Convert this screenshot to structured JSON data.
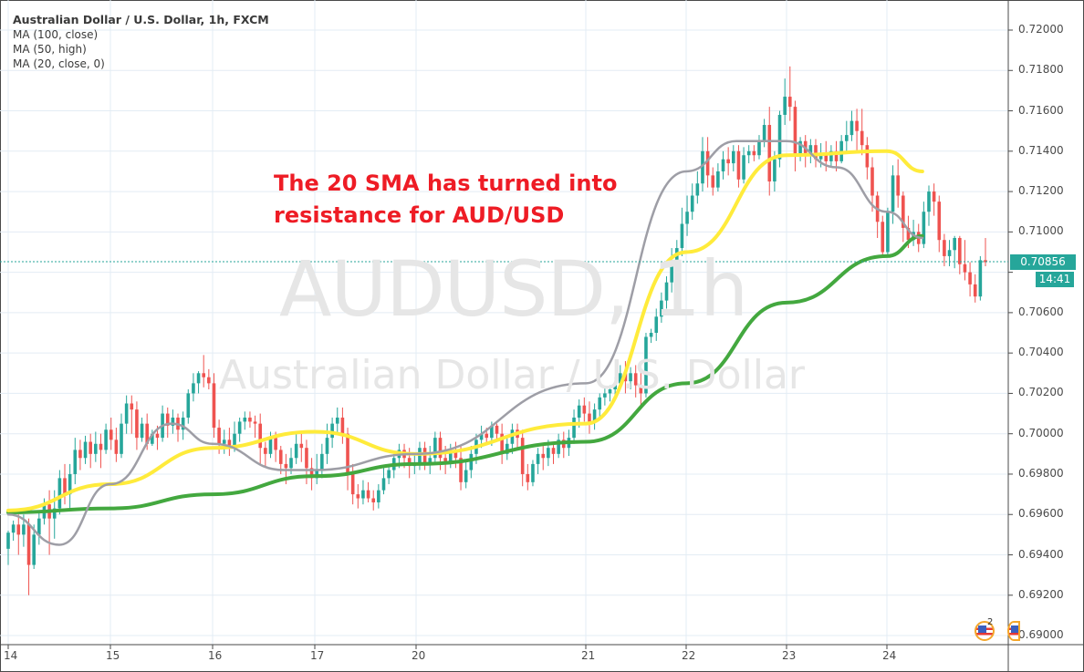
{
  "chart_meta": {
    "symbol_title": "Australian Dollar / U.S. Dollar, 1h, FXCM",
    "indicators": [
      "MA (100, close)",
      "MA (50, high)",
      "MA (20, close, 0)"
    ],
    "watermark_symbol": "AUDUSD, 1h",
    "watermark_name": "Australian Dollar / U.S. Dollar",
    "annotation_line1": "The 20 SMA has turned into",
    "annotation_line2": "resistance for AUD/USD",
    "last_price": "0.70856",
    "countdown": "14:41",
    "event_count": "2",
    "colors": {
      "up": "#26a69a",
      "down": "#ef5350",
      "ma100": "#43a83f",
      "ma50": "#ffeb3b",
      "ma20": "#9e9ea6",
      "annotation": "#ee1c25",
      "grid": "#e3ecf4",
      "price_line": "#26a69a"
    }
  },
  "chart_data": {
    "type": "candlestick",
    "title": "Australian Dollar / U.S. Dollar, 1h, FXCM",
    "xlabel": "",
    "ylabel": "",
    "x_ticks": [
      "14",
      "15",
      "16",
      "17",
      "20",
      "21",
      "22",
      "23",
      "24"
    ],
    "y_ticks": [
      "0.72000",
      "0.71800",
      "0.71600",
      "0.71400",
      "0.71200",
      "0.71000",
      "0.70800",
      "0.70600",
      "0.70400",
      "0.70200",
      "0.70000",
      "0.69800",
      "0.69600",
      "0.69400",
      "0.69200",
      "0.69000"
    ],
    "ylim": [
      0.6895,
      0.7215
    ],
    "grid": true,
    "legend_position": "top-left",
    "last_price": 0.70856,
    "series": [
      {
        "name": "MA (100, close)",
        "color": "#43a83f",
        "x": [
          "14",
          "15",
          "16",
          "17",
          "20",
          "21",
          "22",
          "23",
          "24",
          "24.35"
        ],
        "values": [
          0.6961,
          0.6963,
          0.697,
          0.6979,
          0.6985,
          0.6996,
          0.7025,
          0.7065,
          0.7088,
          0.7098
        ]
      },
      {
        "name": "MA (50, high)",
        "color": "#ffeb3b",
        "x": [
          "14",
          "15",
          "16",
          "17",
          "20",
          "21",
          "22",
          "23",
          "24",
          "24.35"
        ],
        "values": [
          0.6962,
          0.6975,
          0.6993,
          0.7001,
          0.699,
          0.7005,
          0.709,
          0.7138,
          0.714,
          0.713
        ]
      },
      {
        "name": "MA (20, close, 0)",
        "color": "#9e9ea6",
        "x": [
          "14",
          "14.5",
          "15",
          "15.6",
          "16",
          "16.7",
          "17",
          "20",
          "21",
          "22",
          "22.5",
          "23",
          "23.5",
          "24",
          "24.35"
        ],
        "values": [
          0.696,
          0.6945,
          0.6975,
          0.7005,
          0.6995,
          0.6982,
          0.6982,
          0.699,
          0.7025,
          0.713,
          0.7145,
          0.7145,
          0.7132,
          0.711,
          0.7097
        ]
      }
    ],
    "candles": [
      [
        0.6943,
        0.6951,
        0.6935,
        0.6952
      ],
      [
        0.6951,
        0.6955,
        0.6947,
        0.6957
      ],
      [
        0.6955,
        0.695,
        0.694,
        0.696
      ],
      [
        0.695,
        0.6955,
        0.6944,
        0.696
      ],
      [
        0.6955,
        0.6935,
        0.692,
        0.6958
      ],
      [
        0.6935,
        0.695,
        0.6933,
        0.6955
      ],
      [
        0.695,
        0.6958,
        0.6945,
        0.6962
      ],
      [
        0.6958,
        0.6965,
        0.6955,
        0.6968
      ],
      [
        0.6965,
        0.6958,
        0.694,
        0.6972
      ],
      [
        0.6958,
        0.6963,
        0.6948,
        0.6972
      ],
      [
        0.6963,
        0.6978,
        0.696,
        0.6982
      ],
      [
        0.6978,
        0.697,
        0.6965,
        0.6985
      ],
      [
        0.697,
        0.698,
        0.6962,
        0.6985
      ],
      [
        0.698,
        0.6992,
        0.6975,
        0.6998
      ],
      [
        0.6992,
        0.6988,
        0.6982,
        0.6997
      ],
      [
        0.6988,
        0.6996,
        0.6985,
        0.6999
      ],
      [
        0.6996,
        0.699,
        0.6983,
        0.7
      ],
      [
        0.699,
        0.6995,
        0.6986,
        0.7001
      ],
      [
        0.6995,
        0.6992,
        0.6983,
        0.7
      ],
      [
        0.6992,
        0.7002,
        0.699,
        0.7005
      ],
      [
        0.7002,
        0.6997,
        0.6992,
        0.7008
      ],
      [
        0.6997,
        0.699,
        0.6986,
        0.7003
      ],
      [
        0.699,
        0.7005,
        0.6988,
        0.701
      ],
      [
        0.7005,
        0.7015,
        0.7,
        0.7019
      ],
      [
        0.7015,
        0.7012,
        0.7,
        0.7019
      ],
      [
        0.7012,
        0.6998,
        0.6992,
        0.7016
      ],
      [
        0.6998,
        0.7005,
        0.6996,
        0.7008
      ],
      [
        0.7005,
        0.6995,
        0.6992,
        0.701
      ],
      [
        0.6995,
        0.7,
        0.6994,
        0.7002
      ],
      [
        0.7,
        0.6998,
        0.6992,
        0.7004
      ],
      [
        0.6998,
        0.701,
        0.6996,
        0.7014
      ],
      [
        0.701,
        0.7004,
        0.6998,
        0.7013
      ],
      [
        0.7004,
        0.7008,
        0.7,
        0.7012
      ],
      [
        0.7008,
        0.7002,
        0.6996,
        0.701
      ],
      [
        0.7002,
        0.7008,
        0.6997,
        0.7011
      ],
      [
        0.7008,
        0.702,
        0.7005,
        0.7022
      ],
      [
        0.702,
        0.7025,
        0.7016,
        0.703
      ],
      [
        0.7025,
        0.703,
        0.702,
        0.7031
      ],
      [
        0.703,
        0.7028,
        0.7023,
        0.7039
      ],
      [
        0.7028,
        0.7025,
        0.7022,
        0.7032
      ],
      [
        0.7025,
        0.7003,
        0.6998,
        0.703
      ],
      [
        0.7003,
        0.6995,
        0.699,
        0.7007
      ],
      [
        0.6995,
        0.6997,
        0.699,
        0.7002
      ],
      [
        0.6997,
        0.6993,
        0.6989,
        0.7003
      ],
      [
        0.6993,
        0.7,
        0.6991,
        0.7006
      ],
      [
        0.7,
        0.7006,
        0.6996,
        0.7008
      ],
      [
        0.7006,
        0.7008,
        0.7002,
        0.7011
      ],
      [
        0.7008,
        0.7006,
        0.7003,
        0.7011
      ],
      [
        0.7006,
        0.7005,
        0.6998,
        0.7009
      ],
      [
        0.7005,
        0.6993,
        0.6985,
        0.701
      ],
      [
        0.6993,
        0.699,
        0.6984,
        0.6996
      ],
      [
        0.699,
        0.6998,
        0.6988,
        0.7001
      ],
      [
        0.6998,
        0.6992,
        0.6986,
        0.7001
      ],
      [
        0.6992,
        0.6985,
        0.698,
        0.6994
      ],
      [
        0.6985,
        0.6983,
        0.6975,
        0.699
      ],
      [
        0.6983,
        0.6988,
        0.698,
        0.6993
      ],
      [
        0.6988,
        0.6995,
        0.6985,
        0.7001
      ],
      [
        0.6995,
        0.6993,
        0.6986,
        0.7001
      ],
      [
        0.6993,
        0.6983,
        0.6975,
        0.6997
      ],
      [
        0.6983,
        0.6978,
        0.6972,
        0.6988
      ],
      [
        0.6978,
        0.6982,
        0.6975,
        0.699
      ],
      [
        0.6982,
        0.699,
        0.6978,
        0.6995
      ],
      [
        0.699,
        0.6998,
        0.6985,
        0.7005
      ],
      [
        0.6998,
        0.7005,
        0.6993,
        0.7008
      ],
      [
        0.7005,
        0.7008,
        0.7,
        0.7013
      ],
      [
        0.7008,
        0.7,
        0.6995,
        0.7013
      ],
      [
        0.7,
        0.698,
        0.6972,
        0.7003
      ],
      [
        0.698,
        0.697,
        0.6965,
        0.6985
      ],
      [
        0.697,
        0.6968,
        0.6963,
        0.6975
      ],
      [
        0.6968,
        0.6972,
        0.6965,
        0.6977
      ],
      [
        0.6972,
        0.6968,
        0.6966,
        0.6976
      ],
      [
        0.6968,
        0.6966,
        0.6962,
        0.6972
      ],
      [
        0.6966,
        0.6972,
        0.6963,
        0.6975
      ],
      [
        0.6972,
        0.6978,
        0.697,
        0.6983
      ],
      [
        0.6978,
        0.6982,
        0.6975,
        0.6985
      ],
      [
        0.6982,
        0.6988,
        0.6978,
        0.699
      ],
      [
        0.6988,
        0.6992,
        0.6983,
        0.6995
      ],
      [
        0.6992,
        0.6988,
        0.6983,
        0.6995
      ],
      [
        0.6988,
        0.6984,
        0.6978,
        0.6993
      ],
      [
        0.6984,
        0.6985,
        0.698,
        0.699
      ],
      [
        0.6985,
        0.6993,
        0.6982,
        0.6996
      ],
      [
        0.6993,
        0.6985,
        0.6982,
        0.6996
      ],
      [
        0.6985,
        0.6988,
        0.698,
        0.6994
      ],
      [
        0.6988,
        0.6998,
        0.6985,
        0.7001
      ],
      [
        0.6998,
        0.6988,
        0.6982,
        0.7001
      ],
      [
        0.6988,
        0.6985,
        0.698,
        0.6994
      ],
      [
        0.6985,
        0.6992,
        0.6983,
        0.6995
      ],
      [
        0.6992,
        0.6988,
        0.6983,
        0.6996
      ],
      [
        0.6988,
        0.6976,
        0.6972,
        0.6994
      ],
      [
        0.6976,
        0.6982,
        0.6973,
        0.6986
      ],
      [
        0.6982,
        0.699,
        0.6978,
        0.6994
      ],
      [
        0.699,
        0.6997,
        0.6985,
        0.7
      ],
      [
        0.6997,
        0.7,
        0.6993,
        0.7004
      ],
      [
        0.7,
        0.6998,
        0.6995,
        0.7003
      ],
      [
        0.6998,
        0.7004,
        0.6994,
        0.7006
      ],
      [
        0.7004,
        0.7,
        0.6996,
        0.7005
      ],
      [
        0.7,
        0.699,
        0.6985,
        0.7005
      ],
      [
        0.699,
        0.6995,
        0.6987,
        0.6998
      ],
      [
        0.6995,
        0.7002,
        0.699,
        0.7005
      ],
      [
        0.7002,
        0.6998,
        0.6993,
        0.7005
      ],
      [
        0.6998,
        0.698,
        0.6974,
        0.7002
      ],
      [
        0.698,
        0.6976,
        0.6972,
        0.6985
      ],
      [
        0.6976,
        0.6985,
        0.6974,
        0.6987
      ],
      [
        0.6985,
        0.699,
        0.698,
        0.6993
      ],
      [
        0.699,
        0.6988,
        0.6982,
        0.6995
      ],
      [
        0.6988,
        0.6993,
        0.6984,
        0.6997
      ],
      [
        0.6993,
        0.699,
        0.6985,
        0.6996
      ],
      [
        0.699,
        0.6997,
        0.6988,
        0.7
      ],
      [
        0.6997,
        0.6993,
        0.6988,
        0.7001
      ],
      [
        0.6993,
        0.6998,
        0.6989,
        0.7002
      ],
      [
        0.6998,
        0.7008,
        0.6995,
        0.7012
      ],
      [
        0.7008,
        0.7014,
        0.7003,
        0.7017
      ],
      [
        0.7014,
        0.701,
        0.7006,
        0.7018
      ],
      [
        0.701,
        0.7006,
        0.7,
        0.7016
      ],
      [
        0.7006,
        0.7012,
        0.7002,
        0.7015
      ],
      [
        0.7012,
        0.7018,
        0.7008,
        0.702
      ],
      [
        0.7018,
        0.702,
        0.7014,
        0.7023
      ],
      [
        0.702,
        0.7022,
        0.7016,
        0.7024
      ],
      [
        0.7022,
        0.7025,
        0.7018,
        0.7028
      ],
      [
        0.7025,
        0.703,
        0.7022,
        0.7034
      ],
      [
        0.703,
        0.7026,
        0.702,
        0.7036
      ],
      [
        0.7026,
        0.703,
        0.7022,
        0.7033
      ],
      [
        0.703,
        0.7024,
        0.7018,
        0.7034
      ],
      [
        0.7024,
        0.702,
        0.7014,
        0.7032
      ],
      [
        0.702,
        0.7048,
        0.7018,
        0.705
      ],
      [
        0.7048,
        0.705,
        0.7045,
        0.7052
      ],
      [
        0.705,
        0.7058,
        0.7046,
        0.7062
      ],
      [
        0.7058,
        0.7066,
        0.7055,
        0.707
      ],
      [
        0.7066,
        0.7075,
        0.7062,
        0.7078
      ],
      [
        0.7075,
        0.7085,
        0.707,
        0.7092
      ],
      [
        0.7085,
        0.7092,
        0.708,
        0.7096
      ],
      [
        0.7092,
        0.7104,
        0.7088,
        0.7112
      ],
      [
        0.7104,
        0.711,
        0.7098,
        0.7118
      ],
      [
        0.711,
        0.7118,
        0.7106,
        0.7124
      ],
      [
        0.7118,
        0.7124,
        0.7114,
        0.713
      ],
      [
        0.7124,
        0.714,
        0.712,
        0.7147
      ],
      [
        0.714,
        0.7128,
        0.7122,
        0.7147
      ],
      [
        0.7128,
        0.7122,
        0.7118,
        0.7132
      ],
      [
        0.7122,
        0.713,
        0.712,
        0.7134
      ],
      [
        0.713,
        0.7136,
        0.7126,
        0.714
      ],
      [
        0.7136,
        0.7134,
        0.7128,
        0.7142
      ],
      [
        0.7134,
        0.714,
        0.713,
        0.7143
      ],
      [
        0.714,
        0.7126,
        0.7122,
        0.7143
      ],
      [
        0.7126,
        0.7138,
        0.7124,
        0.7142
      ],
      [
        0.7138,
        0.714,
        0.7134,
        0.7143
      ],
      [
        0.714,
        0.7138,
        0.7135,
        0.7143
      ],
      [
        0.7138,
        0.7145,
        0.7136,
        0.7148
      ],
      [
        0.7145,
        0.7153,
        0.7142,
        0.7156
      ],
      [
        0.7153,
        0.7125,
        0.7118,
        0.7162
      ],
      [
        0.7125,
        0.7136,
        0.712,
        0.714
      ],
      [
        0.7136,
        0.7158,
        0.7132,
        0.716
      ],
      [
        0.7158,
        0.7167,
        0.7153,
        0.7176
      ],
      [
        0.7167,
        0.7162,
        0.7155,
        0.7182
      ],
      [
        0.7162,
        0.7138,
        0.713,
        0.7165
      ],
      [
        0.7138,
        0.7145,
        0.7135,
        0.7147
      ],
      [
        0.7145,
        0.7138,
        0.7132,
        0.7148
      ],
      [
        0.7138,
        0.7143,
        0.7134,
        0.7146
      ],
      [
        0.7143,
        0.7136,
        0.7132,
        0.7146
      ],
      [
        0.7136,
        0.7138,
        0.7132,
        0.7144
      ],
      [
        0.7138,
        0.7135,
        0.713,
        0.7145
      ],
      [
        0.7135,
        0.714,
        0.7132,
        0.7143
      ],
      [
        0.714,
        0.7135,
        0.713,
        0.7145
      ],
      [
        0.7135,
        0.7145,
        0.7134,
        0.7148
      ],
      [
        0.7145,
        0.7148,
        0.714,
        0.7155
      ],
      [
        0.7148,
        0.7155,
        0.7145,
        0.716
      ],
      [
        0.7155,
        0.715,
        0.714,
        0.7161
      ],
      [
        0.715,
        0.7143,
        0.7138,
        0.7161
      ],
      [
        0.7143,
        0.7132,
        0.7126,
        0.7147
      ],
      [
        0.7132,
        0.7118,
        0.711,
        0.7137
      ],
      [
        0.7118,
        0.7105,
        0.7097,
        0.712
      ],
      [
        0.7105,
        0.709,
        0.7088,
        0.7108
      ],
      [
        0.709,
        0.711,
        0.7088,
        0.7112
      ],
      [
        0.711,
        0.7128,
        0.7104,
        0.7133
      ],
      [
        0.7128,
        0.7118,
        0.7112,
        0.7136
      ],
      [
        0.7118,
        0.7102,
        0.7095,
        0.712
      ],
      [
        0.7102,
        0.7096,
        0.7092,
        0.7108
      ],
      [
        0.7096,
        0.71,
        0.7093,
        0.7106
      ],
      [
        0.71,
        0.7094,
        0.709,
        0.7104
      ],
      [
        0.7094,
        0.711,
        0.7092,
        0.7115
      ],
      [
        0.711,
        0.712,
        0.7103,
        0.7123
      ],
      [
        0.712,
        0.7115,
        0.7108,
        0.7124
      ],
      [
        0.7115,
        0.7096,
        0.709,
        0.7118
      ],
      [
        0.7096,
        0.7088,
        0.7083,
        0.7099
      ],
      [
        0.7088,
        0.7091,
        0.7083,
        0.7096
      ],
      [
        0.7091,
        0.7097,
        0.7082,
        0.7098
      ],
      [
        0.7097,
        0.7084,
        0.7079,
        0.7098
      ],
      [
        0.7084,
        0.708,
        0.7076,
        0.7096
      ],
      [
        0.708,
        0.7074,
        0.7068,
        0.7085
      ],
      [
        0.7074,
        0.7068,
        0.7065,
        0.7079
      ],
      [
        0.7068,
        0.7086,
        0.7066,
        0.7088
      ],
      [
        0.7086,
        0.7085,
        0.7083,
        0.7097
      ]
    ]
  }
}
